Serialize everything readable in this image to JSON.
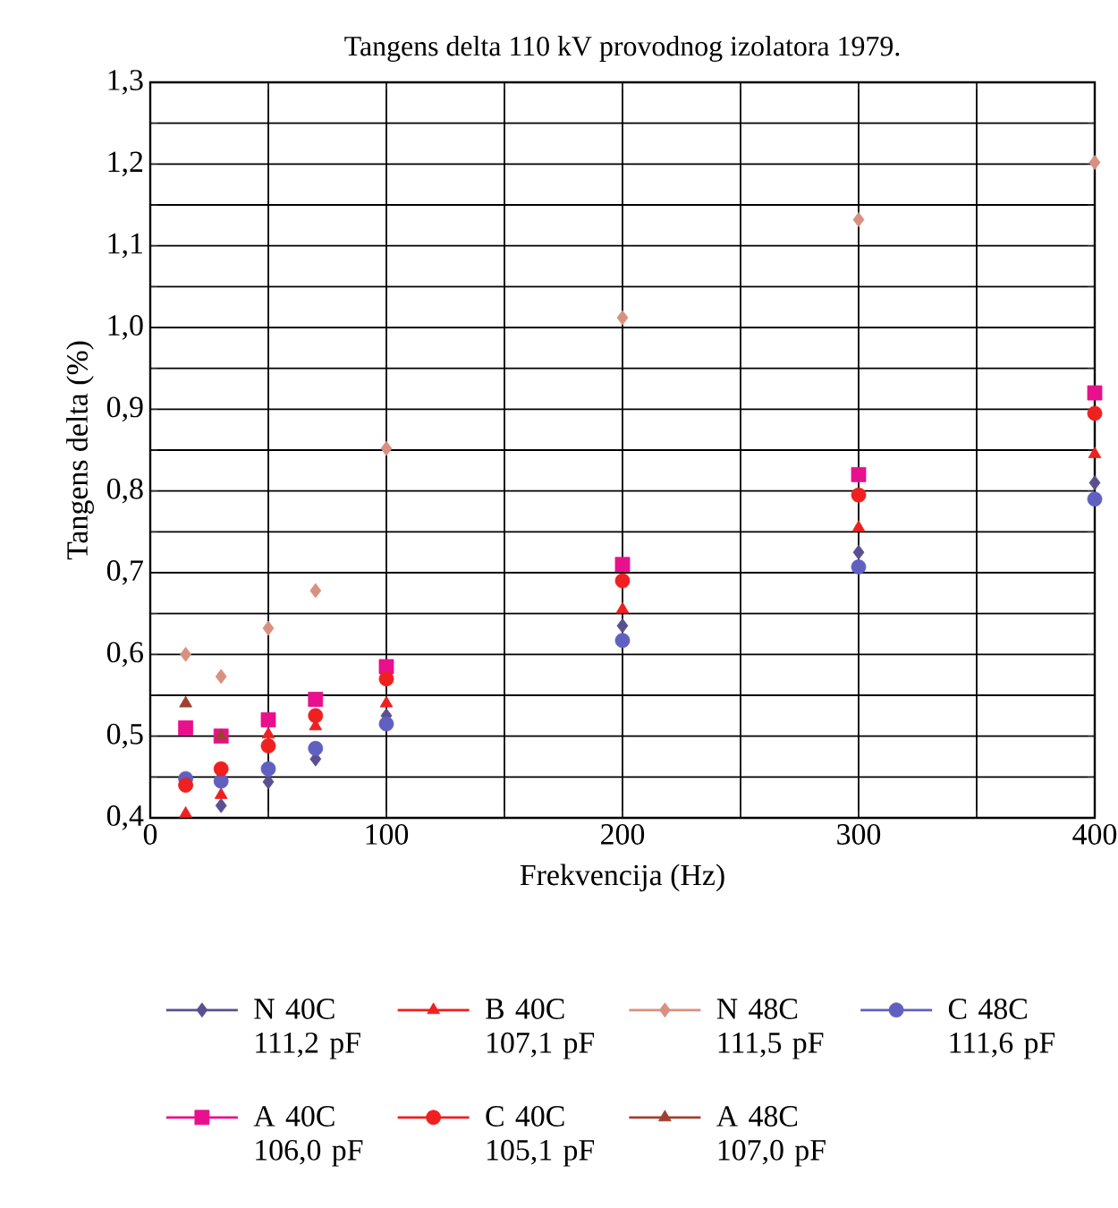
{
  "chart_data": {
    "type": "scatter",
    "title": "Tangens delta 110 kV provodnog izolatora 1979.",
    "xlabel": "Frekvencija (Hz)",
    "ylabel": "Tangens delta (%)",
    "x": [
      15,
      30,
      50,
      70,
      100,
      200,
      300,
      400
    ],
    "series": [
      {
        "name": "N 40C 111,2 pF",
        "color": "#5a5090",
        "marker": "diamond",
        "values": [
          null,
          0.415,
          0.444,
          0.472,
          0.525,
          0.635,
          0.725,
          0.81
        ]
      },
      {
        "name": "B 40C 107,1 pF",
        "color": "#ee2020",
        "marker": "triangle",
        "values": [
          0.405,
          0.428,
          0.502,
          0.512,
          0.54,
          0.655,
          0.755,
          0.845
        ]
      },
      {
        "name": "N 48C 111,5 pF",
        "color": "#d89080",
        "marker": "diamond",
        "values": [
          0.6,
          0.573,
          0.632,
          0.678,
          0.852,
          1.012,
          1.132,
          1.202
        ]
      },
      {
        "name": "C 48C 111,6 pF",
        "color": "#6060c0",
        "marker": "circle",
        "values": [
          0.448,
          0.445,
          0.46,
          0.485,
          0.515,
          0.617,
          0.707,
          0.79
        ]
      },
      {
        "name": "A 40C 106,0 pF",
        "color": "#e8108c",
        "marker": "square",
        "values": [
          0.51,
          0.5,
          0.52,
          0.545,
          0.585,
          0.71,
          0.82,
          0.92
        ]
      },
      {
        "name": "C 40C 105,1 pF",
        "color": "#ee2020",
        "marker": "circle",
        "values": [
          0.44,
          0.46,
          0.488,
          0.525,
          0.57,
          0.69,
          0.795,
          0.895
        ]
      },
      {
        "name": "A 48C 107,0 pF",
        "color": "#a04030",
        "marker": "triangle",
        "values": [
          0.54,
          0.5,
          null,
          null,
          null,
          null,
          null,
          null
        ]
      }
    ],
    "xlim": [
      0,
      400
    ],
    "ylim": [
      0.4,
      1.3
    ],
    "xticks": [
      0,
      {
        "value": 50,
        "label": null
      },
      100,
      {
        "value": 150,
        "label": null
      },
      200,
      {
        "value": 250,
        "label": null
      },
      300,
      {
        "value": 350,
        "label": null
      },
      400
    ],
    "yticks": [
      {
        "value": 0.4,
        "label": "0,4"
      },
      {
        "value": 0.45,
        "label": null
      },
      {
        "value": 0.5,
        "label": "0,5"
      },
      {
        "value": 0.55,
        "label": null
      },
      {
        "value": 0.6,
        "label": "0,6"
      },
      {
        "value": 0.65,
        "label": null
      },
      {
        "value": 0.7,
        "label": "0,7"
      },
      {
        "value": 0.75,
        "label": null
      },
      {
        "value": 0.8,
        "label": "0,8"
      },
      {
        "value": 0.85,
        "label": null
      },
      {
        "value": 0.9,
        "label": "0,9"
      },
      {
        "value": 0.95,
        "label": null
      },
      {
        "value": 1.0,
        "label": "1,0"
      },
      {
        "value": 1.05,
        "label": null
      },
      {
        "value": 1.1,
        "label": "1,1"
      },
      {
        "value": 1.15,
        "label": null
      },
      {
        "value": 1.2,
        "label": "1,2"
      },
      {
        "value": 1.25,
        "label": null
      },
      {
        "value": 1.3,
        "label": "1,3"
      }
    ],
    "grid": true,
    "legend": "bottom"
  }
}
